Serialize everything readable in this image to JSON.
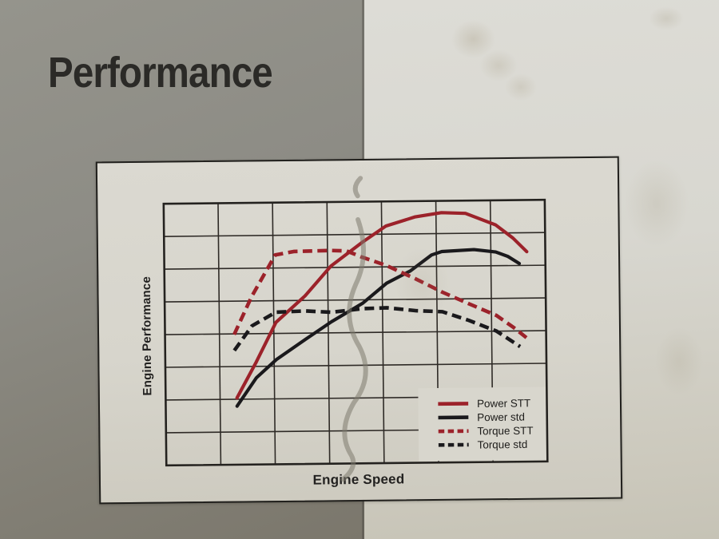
{
  "page": {
    "title": "Performance"
  },
  "chart_data": {
    "type": "line",
    "title": "",
    "xlabel": "Engine Speed",
    "ylabel": "Engine Performance",
    "x_range": [
      0,
      7
    ],
    "y_range": [
      0,
      8
    ],
    "grid": {
      "columns": 7,
      "rows": 8,
      "tick_labels": "none",
      "grid_on": true
    },
    "colors": {
      "accent_red": "#9c222a",
      "curve_black": "#1a191c",
      "grid_line": "#2e2a26",
      "frame": "#24221f",
      "plot_background": "#d8d6cd",
      "legend_text": "#1d1c1a"
    },
    "legend": {
      "position": "inside-bottom-right",
      "entries": [
        "Power STT",
        "Power std",
        "Torque STT",
        "Torque std"
      ]
    },
    "series": [
      {
        "name": "Power STT",
        "color": "#9c222a",
        "dash": "solid",
        "points": [
          [
            1.31,
            2.04
          ],
          [
            1.67,
            3.13
          ],
          [
            2.04,
            4.34
          ],
          [
            2.58,
            5.14
          ],
          [
            3.06,
            6.04
          ],
          [
            3.64,
            6.76
          ],
          [
            4.08,
            7.25
          ],
          [
            4.62,
            7.52
          ],
          [
            5.1,
            7.64
          ],
          [
            5.54,
            7.61
          ],
          [
            6.09,
            7.25
          ],
          [
            6.41,
            6.84
          ],
          [
            6.66,
            6.42
          ]
        ]
      },
      {
        "name": "Power std",
        "color": "#1a191c",
        "dash": "solid",
        "points": [
          [
            1.31,
            1.79
          ],
          [
            1.67,
            2.65
          ],
          [
            2.04,
            3.2
          ],
          [
            2.58,
            3.81
          ],
          [
            3.06,
            4.34
          ],
          [
            3.64,
            4.9
          ],
          [
            4.08,
            5.5
          ],
          [
            4.52,
            5.87
          ],
          [
            4.91,
            6.35
          ],
          [
            5.1,
            6.45
          ],
          [
            5.69,
            6.5
          ],
          [
            6.09,
            6.42
          ],
          [
            6.31,
            6.28
          ],
          [
            6.52,
            6.06
          ]
        ]
      },
      {
        "name": "Torque STT",
        "color": "#9c222a",
        "dash": "dashed",
        "points": [
          [
            1.27,
            3.98
          ],
          [
            1.6,
            5.14
          ],
          [
            2.04,
            6.4
          ],
          [
            2.38,
            6.5
          ],
          [
            3.06,
            6.52
          ],
          [
            3.35,
            6.5
          ],
          [
            3.64,
            6.3
          ],
          [
            4.08,
            6.04
          ],
          [
            4.62,
            5.62
          ],
          [
            5.1,
            5.21
          ],
          [
            5.58,
            4.85
          ],
          [
            6.09,
            4.48
          ],
          [
            6.41,
            4.1
          ],
          [
            6.66,
            3.76
          ]
        ]
      },
      {
        "name": "Torque std",
        "color": "#1a191c",
        "dash": "dashed",
        "points": [
          [
            1.27,
            3.49
          ],
          [
            1.6,
            4.24
          ],
          [
            2.04,
            4.65
          ],
          [
            2.58,
            4.68
          ],
          [
            3.06,
            4.63
          ],
          [
            3.64,
            4.73
          ],
          [
            4.08,
            4.75
          ],
          [
            4.62,
            4.65
          ],
          [
            5.1,
            4.61
          ],
          [
            5.58,
            4.34
          ],
          [
            6.09,
            4.0
          ],
          [
            6.52,
            3.52
          ]
        ]
      }
    ]
  }
}
